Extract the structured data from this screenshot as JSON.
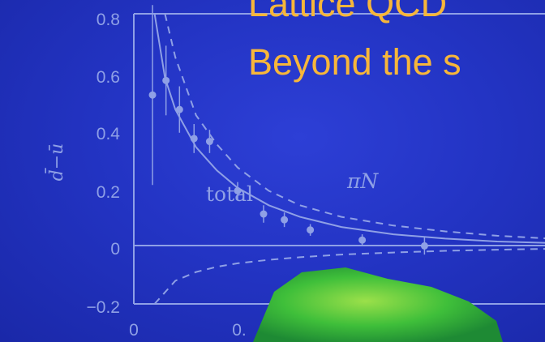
{
  "bullets": [
    "Lattice QCD",
    "Beyond the s"
  ],
  "colors": {
    "background": "#2334c4",
    "plot_ink": "#8fa0e6",
    "bullet_text": "#f7b63a",
    "blob": "#3fbf3a"
  },
  "chart_data": {
    "type": "line",
    "ylabel": "d̄−ū",
    "xlim": [
      0,
      0.5
    ],
    "ylim": [
      -0.2,
      0.8
    ],
    "yticks": [
      "0.8",
      "0.6",
      "0.4",
      "0.2",
      "0",
      "−0.2"
    ],
    "xticks": [
      "0",
      "0."
    ],
    "curve_labels": [
      "total",
      "πN"
    ],
    "series": [
      {
        "style": "solid",
        "x": [
          0.02,
          0.03,
          0.04,
          0.06,
          0.08,
          0.1,
          0.13,
          0.16,
          0.2,
          0.25,
          0.3,
          0.35,
          0.4,
          0.45
        ],
        "y": [
          0.8,
          0.58,
          0.47,
          0.34,
          0.26,
          0.2,
          0.14,
          0.1,
          0.065,
          0.04,
          0.025,
          0.015,
          0.01,
          0.006
        ]
      },
      {
        "style": "dashed",
        "x": [
          0.03,
          0.04,
          0.06,
          0.08,
          0.1,
          0.13,
          0.16,
          0.2,
          0.25,
          0.3,
          0.35,
          0.4,
          0.45
        ],
        "y": [
          0.8,
          0.65,
          0.45,
          0.35,
          0.27,
          0.19,
          0.14,
          0.1,
          0.07,
          0.05,
          0.035,
          0.025,
          0.02
        ]
      },
      {
        "style": "dashed",
        "x": [
          0.02,
          0.04,
          0.06,
          0.08,
          0.1,
          0.13,
          0.16,
          0.2,
          0.25,
          0.3,
          0.35,
          0.4,
          0.45
        ],
        "y": [
          -0.2,
          -0.12,
          -0.09,
          -0.072,
          -0.06,
          -0.048,
          -0.039,
          -0.03,
          -0.023,
          -0.017,
          -0.013,
          -0.01,
          -0.008
        ]
      }
    ],
    "points": [
      {
        "x": 0.018,
        "y": 0.52,
        "err": 0.31
      },
      {
        "x": 0.031,
        "y": 0.57,
        "err": 0.12
      },
      {
        "x": 0.044,
        "y": 0.47,
        "err": 0.08
      },
      {
        "x": 0.058,
        "y": 0.37,
        "err": 0.05
      },
      {
        "x": 0.073,
        "y": 0.36,
        "err": 0.04
      },
      {
        "x": 0.1,
        "y": 0.19,
        "err": 0.03
      },
      {
        "x": 0.125,
        "y": 0.11,
        "err": 0.03
      },
      {
        "x": 0.145,
        "y": 0.09,
        "err": 0.025
      },
      {
        "x": 0.17,
        "y": 0.055,
        "err": 0.02
      },
      {
        "x": 0.22,
        "y": 0.02,
        "err": 0.02
      },
      {
        "x": 0.28,
        "y": 0.0,
        "err": 0.03
      }
    ]
  }
}
